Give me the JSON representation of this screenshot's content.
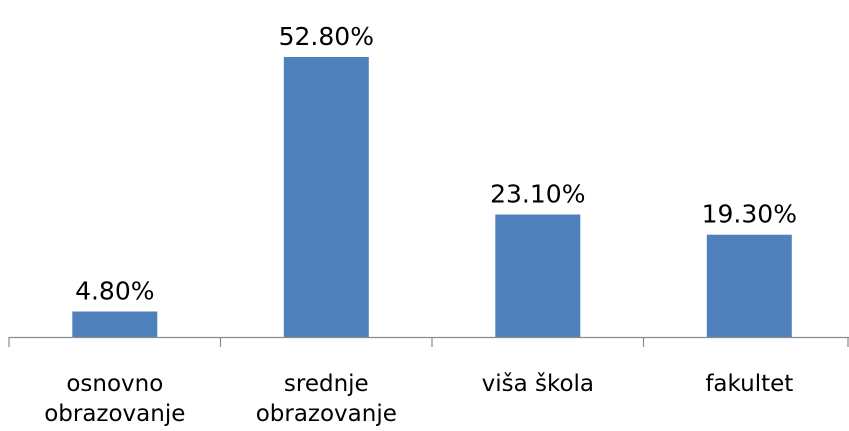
{
  "chart_data": {
    "type": "bar",
    "categories": [
      [
        "osnovno",
        "obrazovanje"
      ],
      [
        "srednje",
        "obrazovanje"
      ],
      [
        "viša škola"
      ],
      [
        "fakultet"
      ]
    ],
    "values": [
      4.8,
      52.8,
      23.1,
      19.3
    ],
    "data_labels": [
      "4.80%",
      "52.80%",
      "23.10%",
      "19.30%"
    ],
    "unit": "%",
    "title": "",
    "xlabel": "",
    "ylabel": "",
    "ylim": [
      0,
      52.8
    ],
    "grid": false,
    "legend": "none",
    "bar_color": "#4f81bd",
    "axis_color": "#8c8c8c"
  }
}
